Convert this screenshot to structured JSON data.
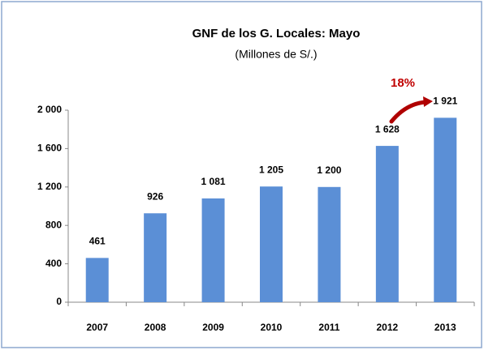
{
  "chart_data": {
    "type": "bar",
    "title": "GNF de los G. Locales: Mayo",
    "subtitle": "(Millones de S/.)",
    "categories": [
      "2007",
      "2008",
      "2009",
      "2010",
      "2011",
      "2012",
      "2013"
    ],
    "values": [
      461,
      926,
      1081,
      1205,
      1200,
      1628,
      1921
    ],
    "value_labels": [
      "461",
      "926",
      "1 081",
      "1 205",
      "1 200",
      "1 628",
      "1 921"
    ],
    "color": "#5b8fd6",
    "ylim": [
      0,
      2000
    ],
    "yticks": [
      0,
      400,
      800,
      {
        "value": 1200,
        "label": "1 200"
      },
      {
        "value": 1600,
        "label": "1 600"
      },
      {
        "value": 2000,
        "label": "2 000"
      }
    ],
    "grid": false,
    "annotation": "18%"
  }
}
